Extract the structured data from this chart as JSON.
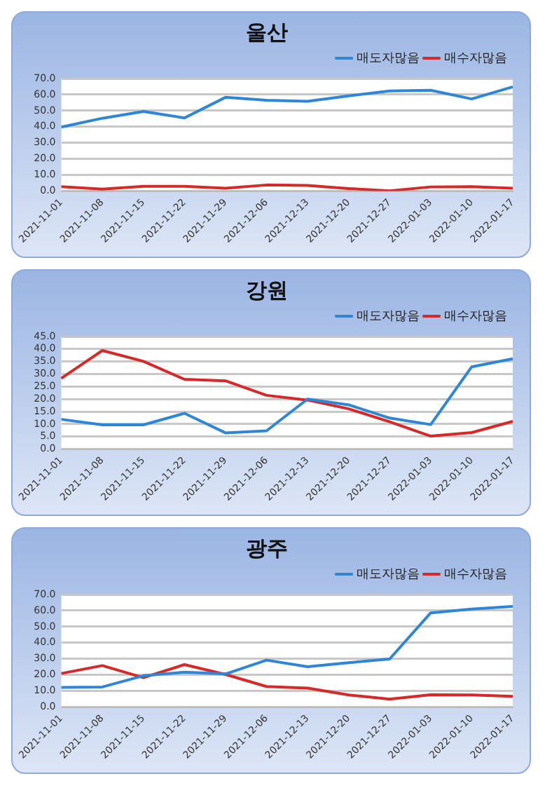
{
  "chart_data": [
    {
      "type": "line",
      "title": "울산",
      "categories": [
        "2021-11-01",
        "2021-11-08",
        "2021-11-15",
        "2021-11-22",
        "2021-11-29",
        "2021-12-06",
        "2021-12-13",
        "2021-12-20",
        "2021-12-27",
        "2022-01-03",
        "2022-01-10",
        "2022-01-17"
      ],
      "series": [
        {
          "name": "매도자많음",
          "color": "#2e86d4",
          "values": [
            39.8,
            45.3,
            49.5,
            45.5,
            58.3,
            56.5,
            55.8,
            59.2,
            62.3,
            62.7,
            57.3,
            64.8
          ]
        },
        {
          "name": "매수자많음",
          "color": "#d42a2a",
          "values": [
            2.8,
            1.2,
            3.0,
            3.0,
            1.8,
            3.8,
            3.5,
            1.6,
            0.2,
            2.6,
            2.8,
            1.8
          ]
        }
      ],
      "ylim": [
        0,
        70
      ],
      "yticks": [
        {
          "value": 0,
          "label": "0.0"
        },
        {
          "value": 10,
          "label": "10.0"
        },
        {
          "value": 20,
          "label": "20.0"
        },
        {
          "value": 30,
          "label": "30.0"
        },
        {
          "value": 40,
          "label": "40.0"
        },
        {
          "value": 50,
          "label": "50.0"
        },
        {
          "value": 60,
          "label": "60.0"
        },
        {
          "value": 70,
          "label": "70.0"
        }
      ],
      "grid": "y",
      "legend": "top right",
      "marker": "none",
      "line_style": "solid"
    },
    {
      "type": "line",
      "title": "강원",
      "categories": [
        "2021-11-01",
        "2021-11-08",
        "2021-11-15",
        "2021-11-22",
        "2021-11-29",
        "2021-12-06",
        "2021-12-13",
        "2021-12-20",
        "2021-12-27",
        "2022-01-03",
        "2022-01-10",
        "2022-01-17"
      ],
      "series": [
        {
          "name": "매도자많음",
          "color": "#2e86d4",
          "values": [
            11.9,
            9.7,
            9.7,
            14.3,
            6.5,
            7.3,
            20.0,
            17.7,
            12.4,
            9.8,
            32.9,
            36.1
          ]
        },
        {
          "name": "매수자많음",
          "color": "#d42a2a",
          "values": [
            28.3,
            39.4,
            35.1,
            27.9,
            27.3,
            21.5,
            19.6,
            16.1,
            10.9,
            5.2,
            6.6,
            11.1
          ]
        }
      ],
      "ylim": [
        0,
        45
      ],
      "yticks": [
        {
          "value": 0,
          "label": "0.0"
        },
        {
          "value": 5,
          "label": "5.0"
        },
        {
          "value": 10,
          "label": "10.0"
        },
        {
          "value": 15,
          "label": "15.0"
        },
        {
          "value": 20,
          "label": "20.0"
        },
        {
          "value": 25,
          "label": "25.0"
        },
        {
          "value": 30,
          "label": "30.0"
        },
        {
          "value": 35,
          "label": "35.0"
        },
        {
          "value": 40,
          "label": "40.0"
        },
        {
          "value": 45,
          "label": "45.0"
        }
      ],
      "grid": "y",
      "legend": "top right",
      "marker": "none",
      "line_style": "solid"
    },
    {
      "type": "line",
      "title": "광주",
      "categories": [
        "2021-11-01",
        "2021-11-08",
        "2021-11-15",
        "2021-11-22",
        "2021-11-29",
        "2021-12-06",
        "2021-12-13",
        "2021-12-20",
        "2021-12-27",
        "2022-01-03",
        "2022-01-10",
        "2022-01-17"
      ],
      "series": [
        {
          "name": "매도자많음",
          "color": "#2e86d4",
          "values": [
            12.2,
            12.5,
            19.5,
            21.7,
            20.6,
            29.2,
            25.1,
            27.6,
            29.9,
            58.6,
            61.0,
            62.6
          ]
        },
        {
          "name": "매수자많음",
          "color": "#d42a2a",
          "values": [
            20.9,
            25.8,
            18.3,
            26.4,
            20.3,
            12.8,
            11.8,
            7.6,
            4.9,
            7.7,
            7.6,
            6.7
          ]
        }
      ],
      "ylim": [
        0,
        70
      ],
      "yticks": [
        {
          "value": 0,
          "label": "0.0"
        },
        {
          "value": 10,
          "label": "10.0"
        },
        {
          "value": 20,
          "label": "20.0"
        },
        {
          "value": 30,
          "label": "30.0"
        },
        {
          "value": 40,
          "label": "40.0"
        },
        {
          "value": 50,
          "label": "50.0"
        },
        {
          "value": 60,
          "label": "60.0"
        },
        {
          "value": 70,
          "label": "70.0"
        }
      ],
      "grid": "y",
      "legend": "top right",
      "marker": "none",
      "line_style": "solid"
    }
  ]
}
